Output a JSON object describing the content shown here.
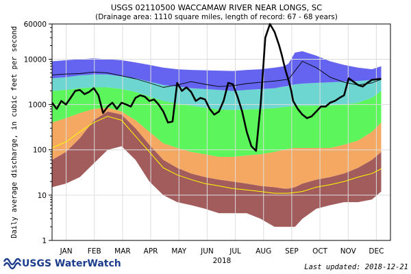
{
  "chart_data": {
    "type": "area",
    "title": "USGS 02110500 WACCAMAW RIVER NEAR LONGS, SC",
    "subtitle": "(Drainage area: 1110 square miles, length of record: 67 - 68 years)",
    "ylabel": "Daily average discharge, in cubic feet per second",
    "xlabel": "2018",
    "yscale": "log",
    "ylim": [
      1,
      60000
    ],
    "yticks": [
      "1",
      "10",
      "100",
      "1000",
      "10000",
      "60000"
    ],
    "ytick_values": [
      1,
      10,
      100,
      1000,
      10000,
      60000
    ],
    "categories": [
      "JAN",
      "FEB",
      "MAR",
      "APR",
      "MAY",
      "JUN",
      "JUL",
      "AUG",
      "SEP",
      "OCT",
      "NOV",
      "DEC"
    ],
    "x_days": [
      0,
      15,
      30,
      45,
      60,
      75,
      90,
      105,
      120,
      135,
      150,
      165,
      180,
      195,
      210,
      225,
      240,
      250,
      255,
      262,
      270,
      285,
      300,
      315,
      330,
      345,
      355
    ],
    "bands": [
      {
        "color": "#a35c5c",
        "lower": [
          15,
          18,
          25,
          50,
          100,
          120,
          60,
          20,
          10,
          7,
          6,
          5,
          4,
          4,
          4,
          3,
          2,
          2,
          2,
          2,
          3,
          5,
          6,
          7,
          7,
          8,
          12
        ],
        "upper": [
          60,
          90,
          180,
          450,
          700,
          600,
          300,
          130,
          60,
          40,
          30,
          25,
          22,
          20,
          18,
          16,
          15,
          14,
          14,
          15,
          18,
          22,
          25,
          30,
          40,
          60,
          90
        ]
      },
      {
        "color": "#f5a862",
        "lower": [
          60,
          90,
          180,
          450,
          700,
          600,
          300,
          130,
          60,
          40,
          30,
          25,
          22,
          20,
          18,
          16,
          15,
          14,
          14,
          15,
          18,
          22,
          25,
          30,
          40,
          60,
          90
        ],
        "upper": [
          400,
          500,
          650,
          800,
          850,
          700,
          450,
          250,
          140,
          110,
          90,
          80,
          70,
          70,
          75,
          80,
          90,
          100,
          105,
          110,
          110,
          110,
          110,
          130,
          160,
          250,
          400
        ]
      },
      {
        "color": "#5cf55c",
        "lower": [
          400,
          500,
          650,
          800,
          850,
          700,
          450,
          250,
          140,
          110,
          90,
          80,
          70,
          70,
          75,
          80,
          90,
          100,
          105,
          110,
          110,
          110,
          110,
          130,
          160,
          250,
          400
        ],
        "upper": [
          2000,
          2100,
          2300,
          2400,
          2400,
          2200,
          1900,
          1500,
          1200,
          1050,
          950,
          850,
          780,
          760,
          780,
          800,
          830,
          880,
          900,
          950,
          950,
          950,
          960,
          1000,
          1100,
          1400,
          2000
        ]
      },
      {
        "color": "#6ed6d0",
        "lower": [
          2000,
          2100,
          2300,
          2400,
          2400,
          2200,
          1900,
          1500,
          1200,
          1050,
          950,
          850,
          780,
          760,
          780,
          800,
          830,
          880,
          900,
          950,
          950,
          950,
          960,
          1000,
          1100,
          1400,
          2000
        ],
        "upper": [
          3800,
          4000,
          4400,
          4600,
          4600,
          4200,
          3800,
          3200,
          2700,
          2500,
          2300,
          2200,
          2100,
          2000,
          2100,
          2200,
          2300,
          2500,
          2600,
          2800,
          2900,
          3000,
          3100,
          3200,
          3300,
          3500,
          3800
        ]
      },
      {
        "color": "#6464f0",
        "lower": [
          3800,
          4000,
          4400,
          4600,
          4600,
          4200,
          3800,
          3200,
          2700,
          2500,
          2300,
          2200,
          2100,
          2000,
          2100,
          2200,
          2300,
          2500,
          2600,
          2800,
          2900,
          3000,
          3100,
          3200,
          3300,
          3500,
          3800
        ],
        "upper": [
          9000,
          9500,
          10000,
          10500,
          10000,
          9500,
          8500,
          7500,
          6500,
          6000,
          5800,
          5700,
          5600,
          5500,
          5800,
          6000,
          6500,
          7000,
          8000,
          14000,
          15000,
          12000,
          9000,
          7500,
          6500,
          6000,
          7000
        ]
      }
    ],
    "series": [
      {
        "name": "",
        "color": "#ffff00",
        "x": [
          0,
          15,
          30,
          45,
          60,
          75,
          90,
          105,
          120,
          135,
          150,
          165,
          180,
          195,
          210,
          225,
          240,
          255,
          270,
          285,
          300,
          315,
          330,
          345,
          355
        ],
        "values": [
          110,
          150,
          250,
          400,
          550,
          450,
          200,
          90,
          40,
          28,
          22,
          18,
          16,
          14,
          13,
          12,
          11,
          11,
          12,
          15,
          17,
          20,
          25,
          30,
          38
        ]
      },
      {
        "name": "",
        "color": "#000000",
        "width": 0.9,
        "x": [
          0,
          15,
          30,
          45,
          60,
          75,
          90,
          105,
          120,
          135,
          150,
          165,
          180,
          195,
          210,
          225,
          240,
          255,
          270,
          285,
          300,
          315,
          330,
          345,
          355
        ],
        "values": [
          4500,
          4700,
          4800,
          5200,
          5000,
          4300,
          3700,
          3000,
          2400,
          2700,
          3200,
          2800,
          2500,
          2600,
          2900,
          3100,
          3300,
          3600,
          9000,
          6500,
          4000,
          3100,
          2700,
          3000,
          3600
        ]
      },
      {
        "name": "",
        "color": "#000000",
        "width": 2.6,
        "x": [
          0,
          5,
          10,
          15,
          20,
          25,
          30,
          35,
          40,
          45,
          50,
          55,
          60,
          65,
          70,
          75,
          80,
          85,
          90,
          95,
          100,
          105,
          110,
          115,
          120,
          125,
          130,
          135,
          140,
          145,
          150,
          155,
          160,
          165,
          170,
          175,
          180,
          185,
          190,
          195,
          200,
          205,
          210,
          215,
          220,
          225,
          230,
          235,
          240,
          245,
          248,
          250,
          252,
          255,
          258,
          260,
          265,
          270,
          275,
          280,
          285,
          290,
          295,
          300,
          305,
          310,
          315,
          320,
          325,
          330,
          335,
          340,
          345,
          350,
          355
        ],
        "values": [
          1100,
          800,
          1200,
          1000,
          1400,
          2000,
          2100,
          1700,
          1900,
          2300,
          1600,
          650,
          900,
          1100,
          800,
          1100,
          1000,
          900,
          1400,
          1600,
          1500,
          1200,
          1300,
          1000,
          700,
          400,
          420,
          3000,
          2000,
          2400,
          1900,
          1200,
          1400,
          1300,
          800,
          600,
          700,
          1200,
          3000,
          2800,
          1500,
          700,
          250,
          120,
          95,
          1000,
          30000,
          60000,
          40000,
          20000,
          12000,
          8000,
          5500,
          3500,
          2000,
          1200,
          800,
          600,
          500,
          550,
          700,
          900,
          900,
          1100,
          1200,
          1400,
          1600,
          3800,
          3200,
          2700,
          2500,
          3000,
          3500,
          3600,
          3700
        ]
      }
    ],
    "grid": true,
    "legend": "none"
  },
  "footer": {
    "logo_text": "USGS WaterWatch",
    "updated": "Last updated: 2018-12-21"
  }
}
